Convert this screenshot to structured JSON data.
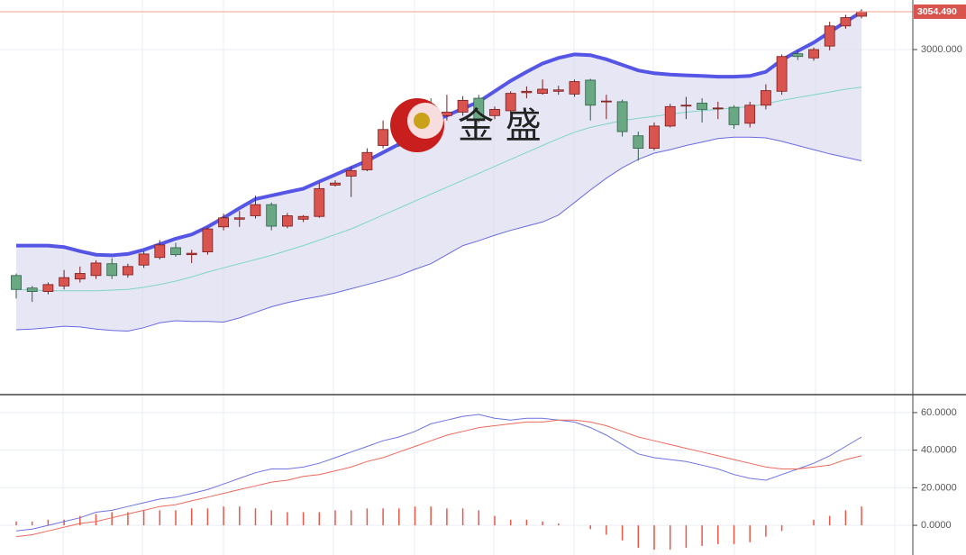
{
  "chart_data": [
    {
      "type": "candlestick",
      "watermark": "金 盛",
      "open": [
        2675,
        2657,
        2652,
        2660,
        2670,
        2675,
        2692,
        2676,
        2690,
        2701,
        2715,
        2705,
        2709,
        2745,
        2756,
        2761,
        2777,
        2746,
        2756,
        2760,
        2805,
        2818,
        2827,
        2862,
        2885,
        2877,
        2916,
        2905,
        2910,
        2930,
        2905,
        2912,
        2938,
        2937,
        2940,
        2936,
        2956,
        2925,
        2925,
        2876,
        2858,
        2890,
        2919,
        2923,
        2915,
        2917,
        2894,
        2920,
        2940,
        2994,
        2988,
        3005,
        3034,
        3048
      ],
      "high": [
        2678,
        2660,
        2665,
        2683,
        2688,
        2697,
        2700,
        2692,
        2710,
        2726,
        2722,
        2712,
        2744,
        2764,
        2768,
        2790,
        2780,
        2765,
        2762,
        2808,
        2812,
        2832,
        2858,
        2898,
        2890,
        2892,
        2930,
        2935,
        2933,
        2935,
        2918,
        2940,
        2947,
        2957,
        2948,
        2957,
        2958,
        2935,
        2928,
        2882,
        2895,
        2922,
        2932,
        2930,
        2925,
        2920,
        2925,
        2950,
        2993,
        3000,
        3003,
        3040,
        3050,
        3058
      ],
      "low": [
        2642,
        2637,
        2648,
        2655,
        2665,
        2670,
        2670,
        2672,
        2686,
        2698,
        2702,
        2693,
        2705,
        2740,
        2745,
        2757,
        2740,
        2743,
        2752,
        2758,
        2803,
        2788,
        2825,
        2858,
        2860,
        2872,
        2895,
        2898,
        2905,
        2895,
        2900,
        2908,
        2930,
        2935,
        2935,
        2932,
        2898,
        2900,
        2875,
        2840,
        2855,
        2888,
        2900,
        2895,
        2900,
        2886,
        2888,
        2914,
        2935,
        2985,
        2984,
        2999,
        3030,
        3045
      ],
      "close": [
        2655,
        2652,
        2662,
        2672,
        2678,
        2693,
        2675,
        2688,
        2706,
        2719,
        2705,
        2707,
        2742,
        2758,
        2758,
        2777,
        2746,
        2761,
        2760,
        2800,
        2808,
        2826,
        2852,
        2885,
        2877,
        2880,
        2905,
        2910,
        2927,
        2900,
        2914,
        2937,
        2940,
        2943,
        2942,
        2954,
        2920,
        2926,
        2882,
        2858,
        2890,
        2918,
        2920,
        2914,
        2916,
        2892,
        2920,
        2941,
        2990,
        2990,
        3000,
        3034,
        3046,
        3054.49
      ],
      "up_color": "#d9534f",
      "down_color": "#6aa884",
      "series": [
        {
          "color": "#5656e6",
          "values": [
            2718,
            2718,
            2718,
            2716,
            2710,
            2705,
            2704,
            2706,
            2712,
            2720,
            2728,
            2734,
            2745,
            2758,
            2772,
            2785,
            2790,
            2795,
            2800,
            2810,
            2820,
            2830,
            2840,
            2852,
            2864,
            2880,
            2895,
            2905,
            2915,
            2925,
            2940,
            2955,
            2968,
            2980,
            2988,
            2993,
            2992,
            2986,
            2978,
            2970,
            2966,
            2964,
            2963,
            2962,
            2961,
            2961,
            2962,
            2968,
            2985,
            2998,
            3010,
            3025,
            3040,
            3054
          ]
        },
        {
          "color": "#7fd6c6",
          "values": [
            2655,
            2654,
            2653,
            2653,
            2653,
            2653,
            2654,
            2655,
            2658,
            2662,
            2667,
            2673,
            2680,
            2686,
            2692,
            2698,
            2704,
            2711,
            2718,
            2726,
            2734,
            2742,
            2752,
            2762,
            2772,
            2782,
            2792,
            2802,
            2812,
            2822,
            2832,
            2842,
            2852,
            2862,
            2872,
            2881,
            2888,
            2893,
            2898,
            2901,
            2904,
            2907,
            2910,
            2912,
            2914,
            2916,
            2918,
            2922,
            2927,
            2931,
            2935,
            2939,
            2943,
            2946
          ]
        },
        {
          "color": "#6a6ae0",
          "values": [
            2597,
            2598,
            2600,
            2602,
            2601,
            2598,
            2596,
            2595,
            2600,
            2607,
            2610,
            2609,
            2609,
            2608,
            2614,
            2622,
            2630,
            2636,
            2641,
            2645,
            2650,
            2656,
            2662,
            2668,
            2675,
            2684,
            2692,
            2705,
            2718,
            2725,
            2733,
            2740,
            2746,
            2752,
            2762,
            2780,
            2798,
            2815,
            2830,
            2842,
            2851,
            2856,
            2862,
            2867,
            2872,
            2874,
            2874,
            2873,
            2868,
            2862,
            2856,
            2850,
            2845,
            2840
          ]
        }
      ],
      "ylim": [
        2505,
        3071.3
      ],
      "yticks": [
        {
          "value": 3000,
          "label": "3000.000"
        }
      ],
      "last_price": {
        "value": 3054.49,
        "label": "3054.490"
      }
    },
    {
      "type": "macd",
      "series": [
        {
          "color": "#6f73e0",
          "values": [
            -3,
            -2,
            0,
            2,
            4,
            7,
            8,
            10,
            12,
            14,
            15,
            17,
            19,
            22,
            25,
            28,
            30,
            30,
            31,
            33,
            36,
            39,
            42,
            45,
            47,
            50,
            54,
            56,
            58,
            59,
            57,
            56,
            57,
            57,
            56,
            55,
            52,
            48,
            43,
            38,
            36,
            35,
            34,
            32,
            30,
            27,
            25,
            24,
            27,
            30,
            33,
            37,
            42,
            47
          ]
        },
        {
          "color": "#ec6a5c",
          "values": [
            -6,
            -5,
            -3,
            -1,
            1,
            2,
            4,
            6,
            8,
            10,
            11,
            13,
            15,
            17,
            19,
            21,
            23,
            24,
            26,
            27,
            29,
            31,
            34,
            36,
            39,
            42,
            45,
            48,
            50,
            52,
            53,
            54,
            55,
            55,
            56,
            56,
            55,
            53,
            50,
            47,
            45,
            43,
            41,
            39,
            37,
            35,
            33,
            31,
            30,
            30,
            31,
            32,
            35,
            37
          ]
        }
      ],
      "bars": {
        "color": "#e8574a",
        "values": [
          2,
          2,
          3,
          3,
          5,
          6,
          7,
          7,
          8,
          8,
          8,
          9,
          9,
          10,
          10,
          9,
          8,
          7,
          7,
          7,
          8,
          8,
          9,
          9,
          9,
          10,
          10,
          9,
          9,
          8,
          5,
          3,
          3,
          2,
          1,
          0,
          -2,
          -5,
          -8,
          -12,
          -13,
          -13,
          -12,
          -11,
          -10,
          -10,
          -9,
          -6,
          -3,
          0,
          3,
          5,
          8,
          10
        ]
      },
      "ylim": [
        -15.8,
        68.6
      ],
      "yticks": [
        {
          "value": 0,
          "label": "0.0000"
        },
        {
          "value": 20,
          "label": "20.0000"
        },
        {
          "value": 40,
          "label": "40.0000"
        },
        {
          "value": 60,
          "label": "60.0000"
        }
      ]
    }
  ]
}
